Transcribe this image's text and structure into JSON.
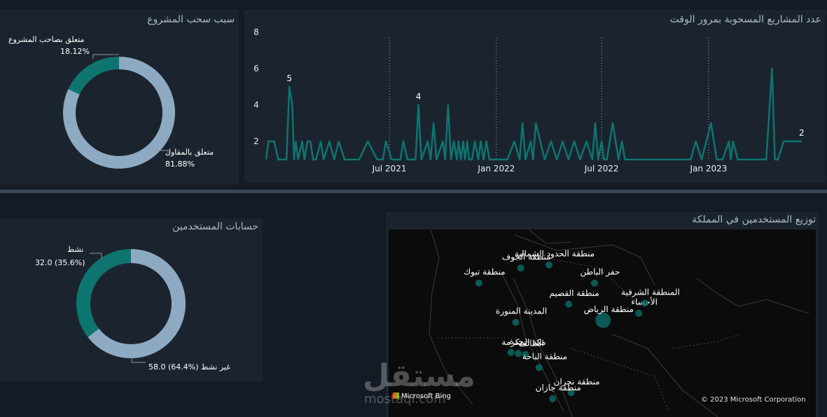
{
  "panels": {
    "withdrawal_reason": {
      "title": "سبب سحب المشروع",
      "slices": [
        {
          "label": "متعلق بصاحب المشروع",
          "percent_label": "18.12%",
          "value": 18.12,
          "color": "#0e7470"
        },
        {
          "label": "متعلق بالمقاول",
          "percent_label": "81.88%",
          "value": 81.88,
          "color": "#8eaac3"
        }
      ]
    },
    "withdrawn_over_time": {
      "title": "عدد المشاريع المسحوبة بمرور الوقت"
    },
    "user_accounts": {
      "title": "حسابات المستخدمين",
      "slices": [
        {
          "label": "نشط",
          "value_label": "32.0 (35.6%)",
          "value": 32.0,
          "color": "#0e7470"
        },
        {
          "label": "غير نشط",
          "value_label": "58.0 (64.4%)",
          "value": 58.0,
          "color": "#8eaac3"
        }
      ],
      "inactive_display": "58.0 (64.4%) غير نشط"
    },
    "user_distribution": {
      "title": "توزيع المستخدمين في المملكة",
      "bing_logo": "Microsoft Bing",
      "copyright": "© 2023 Microsoft Corporation",
      "regions": [
        {
          "name": "منطقة الجوف",
          "lon": 40.0,
          "lat": 29.9
        },
        {
          "name": "منطقة الحدود الشمالية",
          "lon": 42.3,
          "lat": 30.2
        },
        {
          "name": "منطقة تبوك",
          "lon": 36.6,
          "lat": 28.4
        },
        {
          "name": "حفر الباطن",
          "lon": 46.0,
          "lat": 28.4
        },
        {
          "name": "منطقة القصيم",
          "lon": 43.9,
          "lat": 26.3
        },
        {
          "name": "الأحساء",
          "lon": 49.6,
          "lat": 25.4
        },
        {
          "name": "المدينة المنورة",
          "lon": 39.6,
          "lat": 24.5
        },
        {
          "name": "المنطقة الشرقية",
          "lon": 50.1,
          "lat": 26.4
        },
        {
          "name": "مكة المكرمة",
          "lon": 39.8,
          "lat": 21.4
        },
        {
          "name": "منطقة الرياض",
          "lon": 46.7,
          "lat": 24.7
        },
        {
          "name": "الطائف",
          "lon": 40.4,
          "lat": 21.3
        },
        {
          "name": "منطقة نجران",
          "lon": 44.1,
          "lat": 17.5
        },
        {
          "name": "جدة",
          "lon": 39.2,
          "lat": 21.5
        },
        {
          "name": "منطقة الباحة",
          "lon": 41.5,
          "lat": 20.0
        },
        {
          "name": "منطقة جازان",
          "lon": 42.6,
          "lat": 16.9
        }
      ]
    }
  },
  "chart_data": [
    {
      "type": "pie",
      "title": "سبب سحب المشروع",
      "categories": [
        "متعلق بصاحب المشروع",
        "متعلق بالمقاول"
      ],
      "values": [
        18.12,
        81.88
      ]
    },
    {
      "type": "line",
      "title": "عدد المشاريع المسحوبة بمرور الوقت",
      "x_ticks": [
        "Jul 2021",
        "Jan 2022",
        "Jul 2022",
        "Jan 2023"
      ],
      "y_ticks": [
        2,
        4,
        6,
        8
      ],
      "ylim": [
        1,
        8
      ],
      "xlim": [
        "2020-12-01",
        "2023-06-15"
      ],
      "grid": "vertical dotted",
      "annotations": [
        {
          "x": "2021-01-10",
          "label": "5"
        },
        {
          "x": "2021-08-20",
          "label": "4"
        },
        {
          "x": "2023-06-10",
          "label": "2"
        }
      ],
      "series": [
        {
          "color": "#0e7470",
          "x": [
            "2020-12-01",
            "2020-12-05",
            "2020-12-15",
            "2020-12-22",
            "2020-12-28",
            "2021-01-05",
            "2021-01-10",
            "2021-01-15",
            "2021-01-18",
            "2021-01-21",
            "2021-01-25",
            "2021-02-01",
            "2021-02-05",
            "2021-02-10",
            "2021-02-15",
            "2021-02-20",
            "2021-02-25",
            "2021-03-05",
            "2021-03-10",
            "2021-03-20",
            "2021-03-28",
            "2021-04-05",
            "2021-04-15",
            "2021-04-25",
            "2021-05-10",
            "2021-05-25",
            "2021-06-10",
            "2021-06-20",
            "2021-06-25",
            "2021-07-05",
            "2021-07-10",
            "2021-07-20",
            "2021-07-25",
            "2021-08-01",
            "2021-08-05",
            "2021-08-15",
            "2021-08-20",
            "2021-08-25",
            "2021-09-05",
            "2021-09-10",
            "2021-09-15",
            "2021-09-20",
            "2021-10-01",
            "2021-10-05",
            "2021-10-10",
            "2021-10-15",
            "2021-10-20",
            "2021-10-25",
            "2021-10-28",
            "2021-11-01",
            "2021-11-05",
            "2021-11-08",
            "2021-11-12",
            "2021-11-15",
            "2021-11-20",
            "2021-11-25",
            "2021-12-01",
            "2021-12-05",
            "2021-12-10",
            "2021-12-15",
            "2021-12-20",
            "2021-12-25",
            "2022-01-01",
            "2022-01-10",
            "2022-01-20",
            "2022-02-01",
            "2022-02-10",
            "2022-02-15",
            "2022-02-20",
            "2022-03-01",
            "2022-03-05",
            "2022-03-10",
            "2022-03-25",
            "2022-04-05",
            "2022-04-15",
            "2022-04-25",
            "2022-05-05",
            "2022-05-15",
            "2022-05-25",
            "2022-06-05",
            "2022-06-15",
            "2022-06-20",
            "2022-06-25",
            "2022-07-01",
            "2022-07-05",
            "2022-07-10",
            "2022-07-20",
            "2022-07-30",
            "2022-08-05",
            "2022-08-10",
            "2022-08-15",
            "2022-09-10",
            "2022-10-10",
            "2022-11-10",
            "2022-12-01",
            "2022-12-10",
            "2022-12-20",
            "2023-01-05",
            "2023-01-15",
            "2023-01-25",
            "2023-02-05",
            "2023-02-08",
            "2023-02-12",
            "2023-02-20",
            "2023-03-05",
            "2023-03-20",
            "2023-04-10",
            "2023-04-20",
            "2023-04-25",
            "2023-04-30",
            "2023-05-10",
            "2023-05-20",
            "2023-06-10"
          ],
          "y": [
            1,
            2,
            2,
            1,
            1,
            1,
            5,
            4,
            1,
            2,
            1,
            2,
            1,
            2,
            2,
            1,
            1,
            2,
            1,
            2,
            1,
            2,
            1,
            1,
            1,
            2,
            1,
            1,
            2,
            1,
            1,
            1,
            2,
            1,
            1,
            1,
            4,
            1,
            2,
            1,
            3,
            1,
            2,
            1,
            4,
            1,
            2,
            1,
            2,
            1,
            2,
            1,
            2,
            1,
            1,
            2,
            1,
            2,
            1,
            2,
            1,
            1,
            1,
            1,
            1,
            2,
            1,
            3,
            1,
            2,
            1,
            3,
            1,
            2,
            1,
            2,
            1,
            2,
            1,
            2,
            1,
            3,
            1,
            2,
            1,
            1,
            3,
            1,
            2,
            1,
            1,
            1,
            1,
            1,
            1,
            2,
            1,
            3,
            1,
            1,
            2,
            1,
            2,
            1,
            1,
            1,
            1,
            6,
            1,
            1,
            2,
            2,
            2
          ]
        }
      ]
    },
    {
      "type": "pie",
      "title": "حسابات المستخدمين",
      "categories": [
        "نشط",
        "غير نشط"
      ],
      "values": [
        32.0,
        58.0
      ]
    }
  ],
  "watermark": {
    "logo": "مستقل",
    "domain": "mostaql.com"
  }
}
